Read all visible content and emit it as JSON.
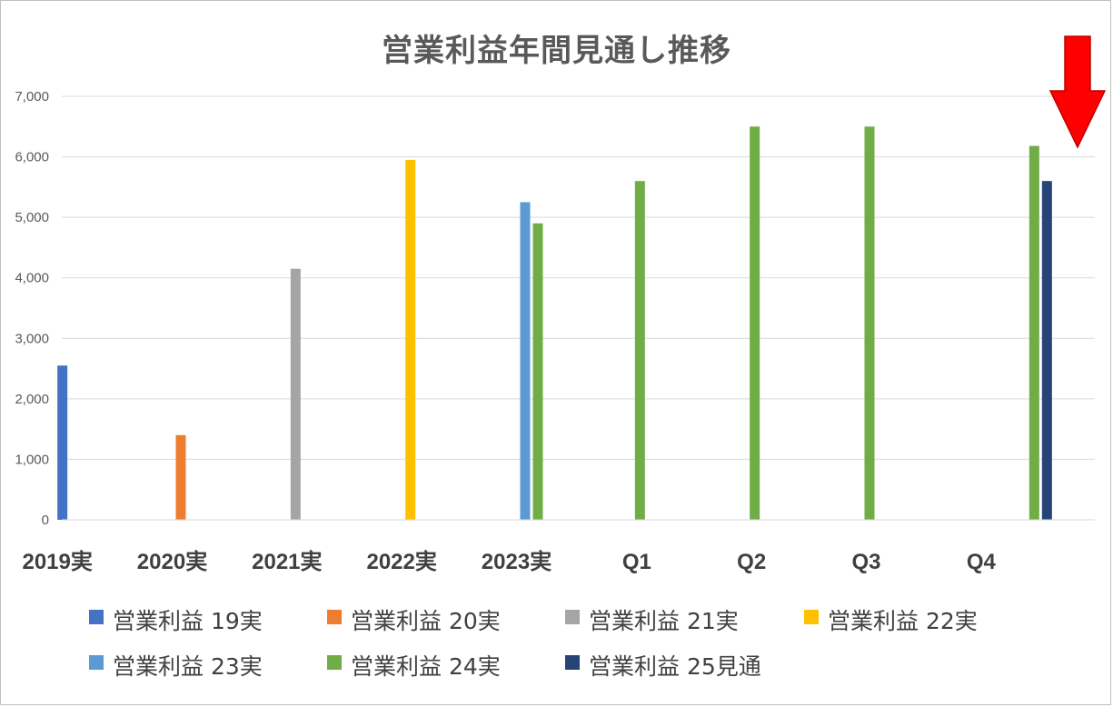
{
  "chart_data": {
    "type": "bar",
    "title": "営業利益年間見通し推移",
    "xlabel": "",
    "ylabel": "",
    "ylim": [
      0,
      7000
    ],
    "yticks": [
      "0",
      "1,000",
      "2,000",
      "3,000",
      "4,000",
      "5,000",
      "6,000",
      "7,000"
    ],
    "ytick_values": [
      0,
      1000,
      2000,
      3000,
      4000,
      5000,
      6000,
      7000
    ],
    "grid": true,
    "legend_position": "bottom",
    "categories": [
      "2019実",
      "2020実",
      "2021実",
      "2022実",
      "2023実",
      "Q1",
      "Q2",
      "Q3",
      "Q4"
    ],
    "series": [
      {
        "name": "営業利益 19実",
        "color": "#4472C4",
        "values": [
          2550,
          null,
          null,
          null,
          null,
          null,
          null,
          null,
          null
        ]
      },
      {
        "name": "営業利益 20実",
        "color": "#ED7D31",
        "values": [
          null,
          1400,
          null,
          null,
          null,
          null,
          null,
          null,
          null
        ]
      },
      {
        "name": "営業利益 21実",
        "color": "#A5A5A5",
        "values": [
          null,
          null,
          4150,
          null,
          null,
          null,
          null,
          null,
          null
        ]
      },
      {
        "name": "営業利益 22実",
        "color": "#FFC000",
        "values": [
          null,
          null,
          null,
          5950,
          null,
          null,
          null,
          null,
          null
        ]
      },
      {
        "name": "営業利益 23実",
        "color": "#5B9BD5",
        "values": [
          null,
          null,
          null,
          null,
          5250,
          null,
          null,
          null,
          null
        ]
      },
      {
        "name": "営業利益 24実",
        "color": "#70AD47",
        "values": [
          null,
          null,
          null,
          null,
          4900,
          5600,
          6500,
          6500,
          6180
        ]
      },
      {
        "name": "営業利益 25見通",
        "color": "#264478",
        "values": [
          null,
          null,
          null,
          null,
          null,
          null,
          null,
          null,
          5600
        ]
      }
    ],
    "annotation": {
      "type": "arrow",
      "target_category": "Q4",
      "color": "#FF0000"
    }
  }
}
